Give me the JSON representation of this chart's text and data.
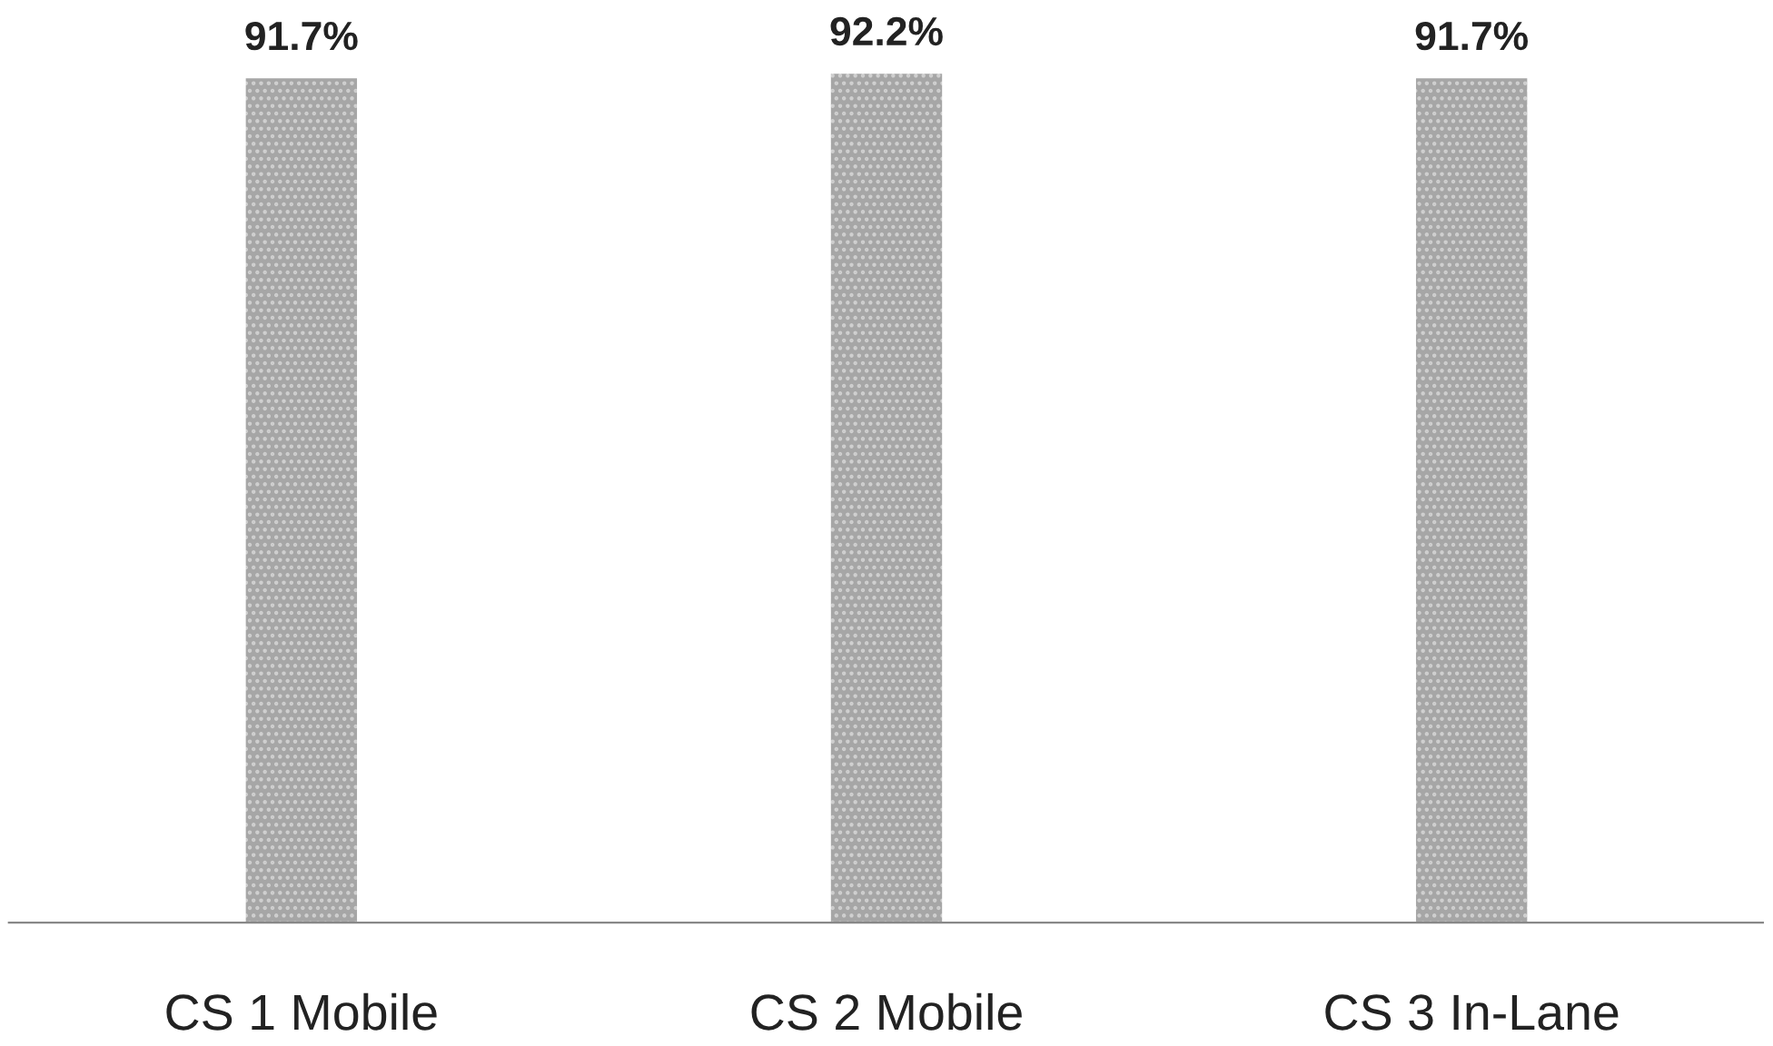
{
  "chart_data": {
    "type": "bar",
    "categories": [
      "CS 1 Mobile",
      "CS 2 Mobile",
      "CS 3 In-Lane"
    ],
    "values": [
      91.7,
      92.2,
      91.7
    ],
    "value_labels": [
      "91.7%",
      "92.2%",
      "91.7%"
    ],
    "color": "#a6a6a6",
    "tick_labels": "x",
    "grid": false,
    "legend": false
  }
}
